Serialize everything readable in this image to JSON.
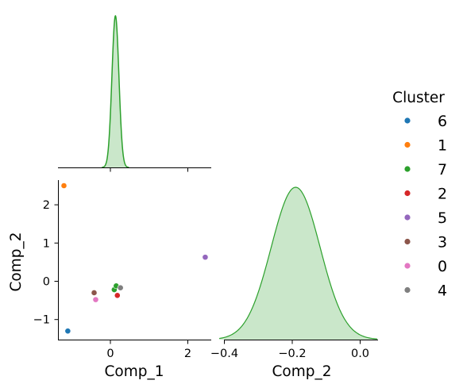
{
  "chart_data": {
    "type": "scatter",
    "kind": "pairplot",
    "variables": [
      "Comp_1",
      "Comp_2"
    ],
    "hue": "Cluster",
    "points": [
      {
        "cluster": "6",
        "comp_1": -1.1,
        "comp_2": -1.3,
        "color": "#1f77b4"
      },
      {
        "cluster": "1",
        "comp_1": -1.2,
        "comp_2": 2.5,
        "color": "#ff7f0e"
      },
      {
        "cluster": "7",
        "comp_1": 0.1,
        "comp_2": -0.22,
        "color": "#2ca02c"
      },
      {
        "cluster": "7",
        "comp_1": 0.15,
        "comp_2": -0.12,
        "color": "#2ca02c"
      },
      {
        "cluster": "2",
        "comp_1": 0.18,
        "comp_2": -0.37,
        "color": "#d62728"
      },
      {
        "cluster": "5",
        "comp_1": 2.45,
        "comp_2": 0.63,
        "color": "#9467bd"
      },
      {
        "cluster": "3",
        "comp_1": -0.42,
        "comp_2": -0.3,
        "color": "#8c564b"
      },
      {
        "cluster": "0",
        "comp_1": -0.38,
        "comp_2": -0.48,
        "color": "#e377c2"
      },
      {
        "cluster": "4",
        "comp_1": 0.26,
        "comp_2": -0.17,
        "color": "#7f7f7f"
      }
    ],
    "kde_comp_1": {
      "cluster": "7",
      "center": 0.13,
      "color": "#2ca02c"
    },
    "kde_comp_2": {
      "cluster": "7",
      "center": -0.19,
      "color": "#2ca02c"
    },
    "axes": {
      "comp_1": {
        "label": "Comp_1",
        "range": [
          -1.35,
          2.6
        ],
        "ticks": [
          0,
          2
        ],
        "tick_labels": [
          "0",
          "2"
        ]
      },
      "comp_2_scatter": {
        "label": "Comp_2",
        "range": [
          -1.5,
          2.7
        ],
        "ticks": [
          -1,
          0,
          1,
          2
        ],
        "tick_labels": [
          "−1",
          "0",
          "1",
          "2"
        ]
      },
      "comp_2_diag": {
        "label": "Comp_2",
        "range": [
          -0.43,
          0.06
        ],
        "ticks": [
          -0.4,
          -0.2,
          0.0
        ],
        "tick_labels": [
          "−0.4",
          "−0.2",
          "0.0"
        ]
      }
    },
    "legend": {
      "title": "Cluster",
      "placement": "right",
      "entries": [
        {
          "label": "6",
          "color": "#1f77b4"
        },
        {
          "label": "1",
          "color": "#ff7f0e"
        },
        {
          "label": "7",
          "color": "#2ca02c"
        },
        {
          "label": "2",
          "color": "#d62728"
        },
        {
          "label": "5",
          "color": "#9467bd"
        },
        {
          "label": "3",
          "color": "#8c564b"
        },
        {
          "label": "0",
          "color": "#e377c2"
        },
        {
          "label": "4",
          "color": "#7f7f7f"
        }
      ]
    },
    "grid": false
  }
}
